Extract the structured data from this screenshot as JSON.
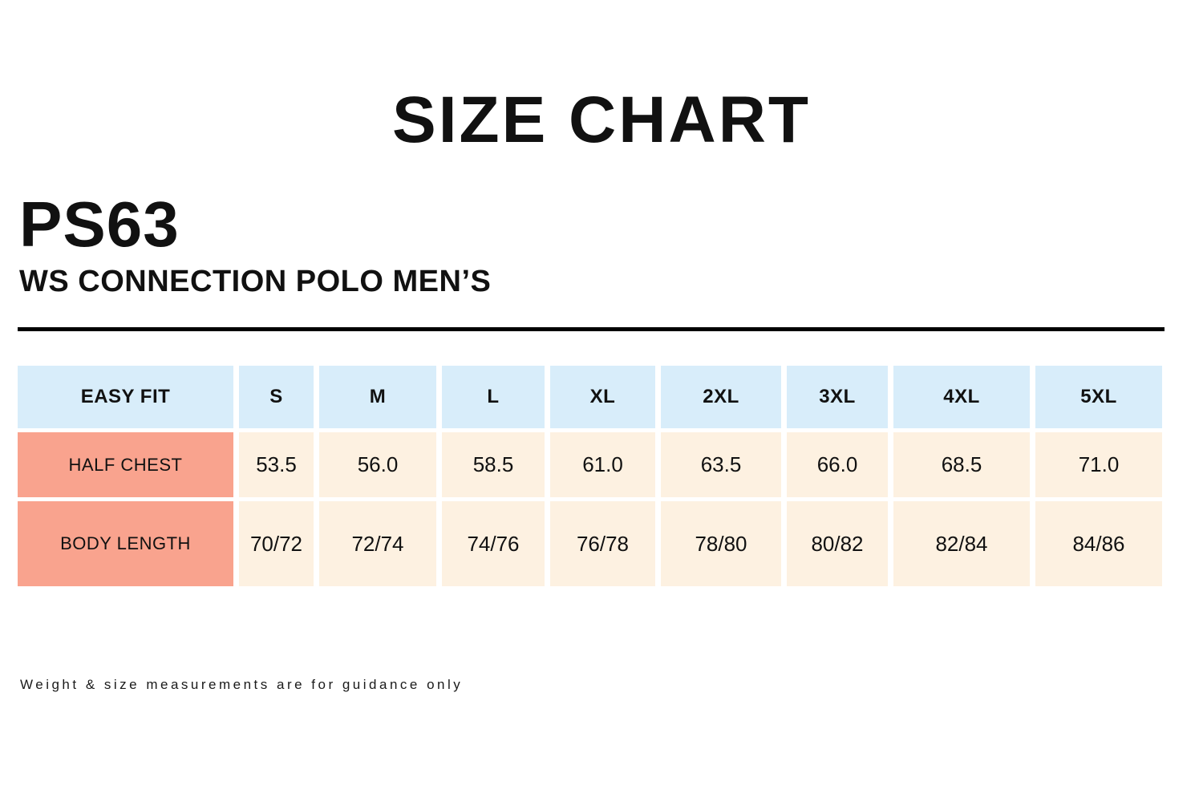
{
  "page": {
    "title": "SIZE CHART",
    "product_code": "PS63",
    "product_name": "WS CONNECTION POLO MEN’S",
    "footnote": "Weight & size measurements are for guidance only"
  },
  "colors": {
    "header_bg": "#d8edfa",
    "label_bg": "#f9a38e",
    "cell_bg": "#fdf1e1",
    "text": "#111111"
  },
  "chart_data": {
    "type": "table",
    "title": "SIZE CHART",
    "fit_label": "EASY FIT",
    "columns": [
      "S",
      "M",
      "L",
      "XL",
      "2XL",
      "3XL",
      "4XL",
      "5XL"
    ],
    "rows": [
      {
        "label": "HALF CHEST",
        "values": [
          "53.5",
          "56.0",
          "58.5",
          "61.0",
          "63.5",
          "66.0",
          "68.5",
          "71.0"
        ]
      },
      {
        "label": "BODY LENGTH",
        "values": [
          "70/72",
          "72/74",
          "74/76",
          "76/78",
          "78/80",
          "80/82",
          "82/84",
          "84/86"
        ]
      }
    ],
    "layout": {
      "header_row_color": "#d8edfa",
      "row_label_color": "#f9a38e",
      "value_cell_color": "#fdf1e1"
    }
  }
}
